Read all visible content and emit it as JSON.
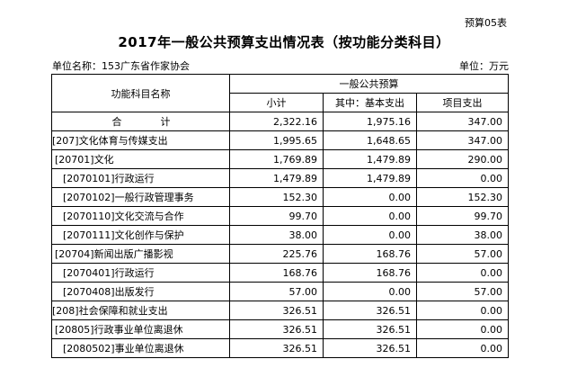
{
  "form_number": "预算05表",
  "title": "2017年一般公共预算支出情况表（按功能分类科目）",
  "unit_name_label": "单位名称：153广东省作家协会",
  "currency_label": "单位：万元",
  "table": {
    "group_header": "一般公共预算",
    "col_name": "功能科目名称",
    "col_subtotal": "小计",
    "col_basic": "其中：基本支出",
    "col_project": "项目支出",
    "rows": [
      {
        "name": "合　计",
        "subtotal": "2,322.16",
        "basic": "1,975.16",
        "project": "347.00"
      },
      {
        "name": "[207]文化体育与传媒支出",
        "subtotal": "1,995.65",
        "basic": "1,648.65",
        "project": "347.00"
      },
      {
        "name": "[20701]文化",
        "subtotal": "1,769.89",
        "basic": "1,479.89",
        "project": "290.00"
      },
      {
        "name": "[2070101]行政运行",
        "subtotal": "1,479.89",
        "basic": "1,479.89",
        "project": "0.00"
      },
      {
        "name": "[2070102]一般行政管理事务",
        "subtotal": "152.30",
        "basic": "0.00",
        "project": "152.30"
      },
      {
        "name": "[2070110]文化交流与合作",
        "subtotal": "99.70",
        "basic": "0.00",
        "project": "99.70"
      },
      {
        "name": "[2070111]文化创作与保护",
        "subtotal": "38.00",
        "basic": "0.00",
        "project": "38.00"
      },
      {
        "name": "[20704]新闻出版广播影视",
        "subtotal": "225.76",
        "basic": "168.76",
        "project": "57.00"
      },
      {
        "name": "[2070401]行政运行",
        "subtotal": "168.76",
        "basic": "168.76",
        "project": "0.00"
      },
      {
        "name": "[2070408]出版发行",
        "subtotal": "57.00",
        "basic": "0.00",
        "project": "57.00"
      },
      {
        "name": "[208]社会保障和就业支出",
        "subtotal": "326.51",
        "basic": "326.51",
        "project": "0.00"
      },
      {
        "name": "[20805]行政事业单位离退休",
        "subtotal": "326.51",
        "basic": "326.51",
        "project": "0.00"
      },
      {
        "name": "[2080502]事业单位离退休",
        "subtotal": "326.51",
        "basic": "326.51",
        "project": "0.00"
      }
    ]
  }
}
